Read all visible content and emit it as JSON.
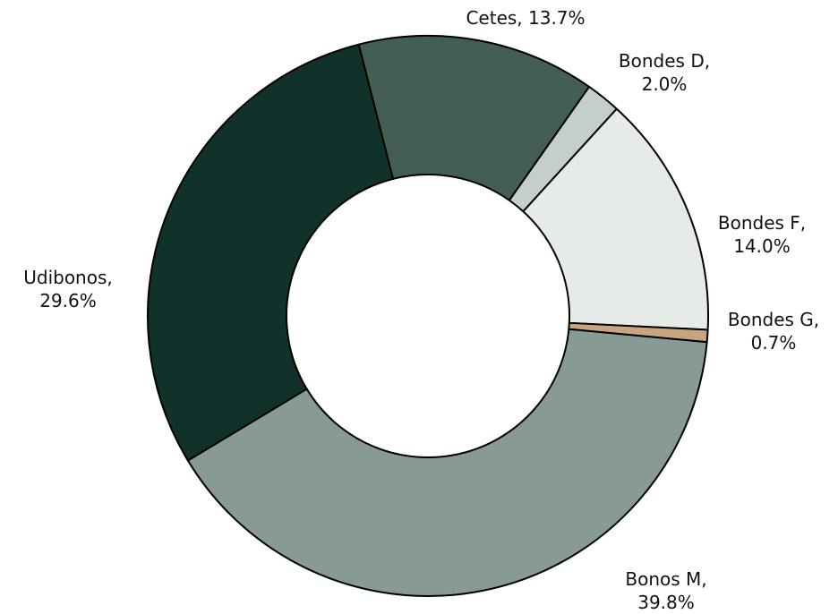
{
  "chart_data": {
    "type": "donut",
    "categories": [
      "Cetes",
      "Bondes D",
      "Bondes F",
      "Bondes G",
      "Bonos M",
      "Udibonos"
    ],
    "values": [
      13.7,
      2.0,
      14.0,
      0.7,
      39.8,
      29.6
    ],
    "value_labels": [
      "Cetes, 13.7%",
      "Bondes D, 2.0%",
      "Bondes F, 14.0%",
      "Bondes G, 0.7%",
      "Bonos M, 39.8%",
      "Udibonos, 29.6%"
    ],
    "colors": [
      "#435e55",
      "#c5cfca",
      "#e6ebe8",
      "#c9a57f",
      "#879a94",
      "#10322a"
    ]
  }
}
